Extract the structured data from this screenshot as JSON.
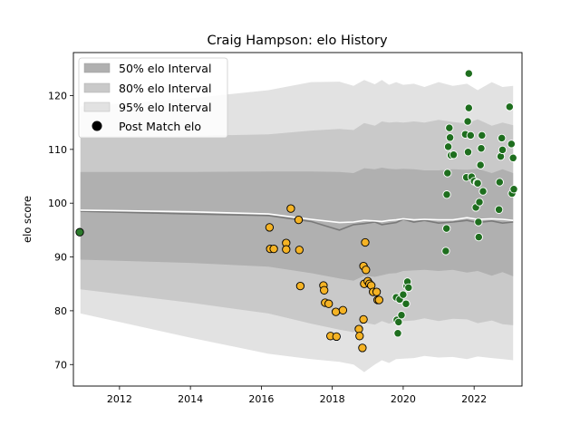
{
  "chart_data": {
    "type": "scatter",
    "title": "Craig Hampson: elo History",
    "xlabel": "",
    "ylabel": "elo score",
    "xlim": [
      2010.7,
      2023.35
    ],
    "ylim": [
      66.0,
      128.0
    ],
    "x_ticks": [
      2012,
      2014,
      2016,
      2018,
      2020,
      2022
    ],
    "y_ticks": [
      70,
      80,
      90,
      100,
      110,
      120
    ],
    "grid": false,
    "legend_position": "top-left",
    "legend": [
      {
        "label": "50% elo Interval",
        "kind": "band",
        "color": "#b0b0b0"
      },
      {
        "label": "80% elo Interval",
        "kind": "band",
        "color": "#c9c9c9"
      },
      {
        "label": "95% elo Interval",
        "kind": "band",
        "color": "#e2e2e2"
      },
      {
        "label": "Post Match elo",
        "kind": "marker",
        "color": "#000000"
      }
    ],
    "bands": {
      "x": [
        2010.9,
        2014.0,
        2016.2,
        2017.4,
        2018.2,
        2018.6,
        2018.9,
        2019.2,
        2019.4,
        2019.6,
        2019.8,
        2020.0,
        2020.3,
        2020.6,
        2021.0,
        2021.4,
        2021.8,
        2022.1,
        2022.5,
        2022.8,
        2023.1
      ],
      "q50_low": [
        89.5,
        88.9,
        88.2,
        87.0,
        86.0,
        85.6,
        86.5,
        86.3,
        86.6,
        86.9,
        87.0,
        87.4,
        87.5,
        87.6,
        87.4,
        87.6,
        87.1,
        87.4,
        86.5,
        87.2,
        86.4
      ],
      "q50_high": [
        105.8,
        105.8,
        105.9,
        105.9,
        105.8,
        105.6,
        106.5,
        106.3,
        106.6,
        106.4,
        106.3,
        106.4,
        106.3,
        106.1,
        106.1,
        106.3,
        106.2,
        106.4,
        105.6,
        106.3,
        105.6
      ],
      "q80_low": [
        84.0,
        81.5,
        79.5,
        77.6,
        76.5,
        76.0,
        77.8,
        77.4,
        78.1,
        77.6,
        78.0,
        78.1,
        78.2,
        78.6,
        78.1,
        78.5,
        78.4,
        77.7,
        78.2,
        77.5,
        77.3
      ],
      "q80_high": [
        112.5,
        112.5,
        112.8,
        113.5,
        113.8,
        113.6,
        114.9,
        114.4,
        115.2,
        115.0,
        115.1,
        115.0,
        115.2,
        115.0,
        115.5,
        115.1,
        114.8,
        115.6,
        114.4,
        115.0,
        114.5
      ],
      "q95_low": [
        79.5,
        75.0,
        72.0,
        71.0,
        70.5,
        70.0,
        68.6,
        70.0,
        70.8,
        70.3,
        71.0,
        71.1,
        71.2,
        71.6,
        71.3,
        71.4,
        71.0,
        71.5,
        71.2,
        71.0,
        70.8
      ],
      "q95_high": [
        118.0,
        119.5,
        121.0,
        122.5,
        122.6,
        121.8,
        122.9,
        122.1,
        122.9,
        122.0,
        122.5,
        122.0,
        122.2,
        121.6,
        122.5,
        121.8,
        122.2,
        121.0,
        122.5,
        121.6,
        121.8
      ],
      "median": [
        98.5,
        98.0,
        97.7,
        96.6,
        95.0,
        96.0,
        96.2,
        96.5,
        96.0,
        96.2,
        96.4,
        97.0,
        96.5,
        96.8,
        96.3,
        96.5,
        96.8,
        96.4,
        96.7,
        96.3,
        96.5
      ],
      "mean": [
        98.7,
        98.4,
        98.0,
        97.0,
        96.4,
        96.5,
        96.8,
        96.7,
        96.6,
        96.8,
        96.9,
        97.1,
        96.9,
        97.0,
        96.9,
        96.9,
        97.3,
        97.0,
        97.1,
        97.0,
        96.8
      ]
    },
    "series": [
      {
        "color": "#2b7a2b",
        "points": [
          [
            2010.88,
            94.6
          ]
        ]
      },
      {
        "color": "#f5b324",
        "points": [
          [
            2016.23,
            95.5
          ],
          [
            2016.25,
            91.5
          ],
          [
            2016.35,
            91.5
          ],
          [
            2016.7,
            92.6
          ],
          [
            2016.7,
            91.4
          ],
          [
            2016.83,
            99.0
          ],
          [
            2017.05,
            96.9
          ],
          [
            2017.07,
            91.3
          ],
          [
            2017.1,
            84.6
          ],
          [
            2017.75,
            84.7
          ],
          [
            2017.77,
            83.8
          ],
          [
            2017.8,
            81.5
          ],
          [
            2017.9,
            81.3
          ],
          [
            2017.95,
            75.3
          ],
          [
            2018.1,
            79.8
          ],
          [
            2018.12,
            75.2
          ],
          [
            2018.3,
            80.1
          ],
          [
            2018.75,
            76.6
          ],
          [
            2018.77,
            75.3
          ],
          [
            2018.85,
            73.1
          ],
          [
            2018.88,
            78.4
          ],
          [
            2018.88,
            88.3
          ],
          [
            2018.9,
            85.0
          ],
          [
            2018.93,
            92.7
          ],
          [
            2018.95,
            87.6
          ],
          [
            2019.0,
            85.5
          ],
          [
            2019.05,
            85.0
          ],
          [
            2019.1,
            84.7
          ],
          [
            2019.15,
            83.5
          ],
          [
            2019.25,
            83.5
          ],
          [
            2019.28,
            82.0
          ],
          [
            2019.32,
            82.0
          ]
        ]
      },
      {
        "color": "#1e6e1e",
        "points": [
          [
            2019.8,
            82.5
          ],
          [
            2019.82,
            78.3
          ],
          [
            2019.85,
            75.8
          ],
          [
            2019.87,
            77.9
          ],
          [
            2019.9,
            82.1
          ],
          [
            2019.95,
            79.2
          ],
          [
            2020.0,
            83.0
          ],
          [
            2020.08,
            81.3
          ],
          [
            2020.1,
            84.6
          ],
          [
            2020.12,
            85.4
          ],
          [
            2020.15,
            84.3
          ],
          [
            2021.2,
            91.1
          ],
          [
            2021.22,
            95.3
          ],
          [
            2021.23,
            101.6
          ],
          [
            2021.25,
            105.6
          ],
          [
            2021.27,
            110.5
          ],
          [
            2021.3,
            114.0
          ],
          [
            2021.32,
            112.2
          ],
          [
            2021.35,
            108.9
          ],
          [
            2021.42,
            109.0
          ],
          [
            2021.75,
            112.8
          ],
          [
            2021.78,
            104.8
          ],
          [
            2021.82,
            115.2
          ],
          [
            2021.83,
            109.5
          ],
          [
            2021.85,
            117.7
          ],
          [
            2021.85,
            124.1
          ],
          [
            2021.9,
            112.6
          ],
          [
            2021.93,
            104.9
          ],
          [
            2022.0,
            104.1
          ],
          [
            2022.05,
            99.2
          ],
          [
            2022.08,
            103.8
          ],
          [
            2022.1,
            103.7
          ],
          [
            2022.12,
            96.5
          ],
          [
            2022.13,
            93.7
          ],
          [
            2022.15,
            100.2
          ],
          [
            2022.18,
            107.1
          ],
          [
            2022.2,
            110.2
          ],
          [
            2022.22,
            112.6
          ],
          [
            2022.25,
            102.2
          ],
          [
            2022.7,
            98.8
          ],
          [
            2022.72,
            103.9
          ],
          [
            2022.75,
            108.7
          ],
          [
            2022.78,
            112.1
          ],
          [
            2022.8,
            109.9
          ],
          [
            2023.0,
            117.9
          ],
          [
            2023.05,
            111.0
          ],
          [
            2023.07,
            101.8
          ],
          [
            2023.1,
            108.4
          ],
          [
            2023.12,
            102.6
          ]
        ]
      }
    ]
  }
}
